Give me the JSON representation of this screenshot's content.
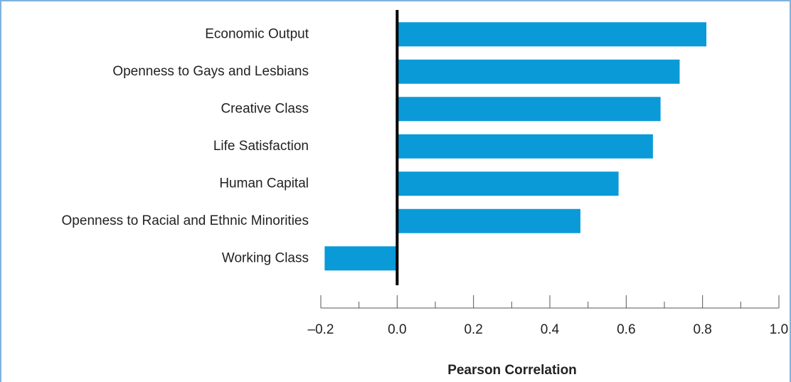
{
  "chart_data": {
    "type": "barh",
    "categories": [
      "Economic Output",
      "Openness to Gays and Lesbians",
      "Creative Class",
      "Life Satisfaction",
      "Human Capital",
      "Openness to Racial and Ethnic Minorities",
      "Working Class"
    ],
    "values": [
      0.81,
      0.74,
      0.69,
      0.67,
      0.58,
      0.48,
      -0.19
    ],
    "color": "#0b9ad8",
    "xlabel": "Pearson Correlation",
    "xlim": [
      -0.2,
      1.0
    ],
    "xticks": [
      {
        "value": -0.2,
        "label": "–0.2"
      },
      {
        "value": 0,
        "label": "0.0"
      },
      0.2,
      0.4,
      0.6,
      0.8,
      {
        "value": 1.0,
        "label": "1.0"
      }
    ],
    "xminor_ticks": [
      -0.1,
      0.1,
      0.3,
      0.5,
      0.7,
      0.9
    ]
  }
}
